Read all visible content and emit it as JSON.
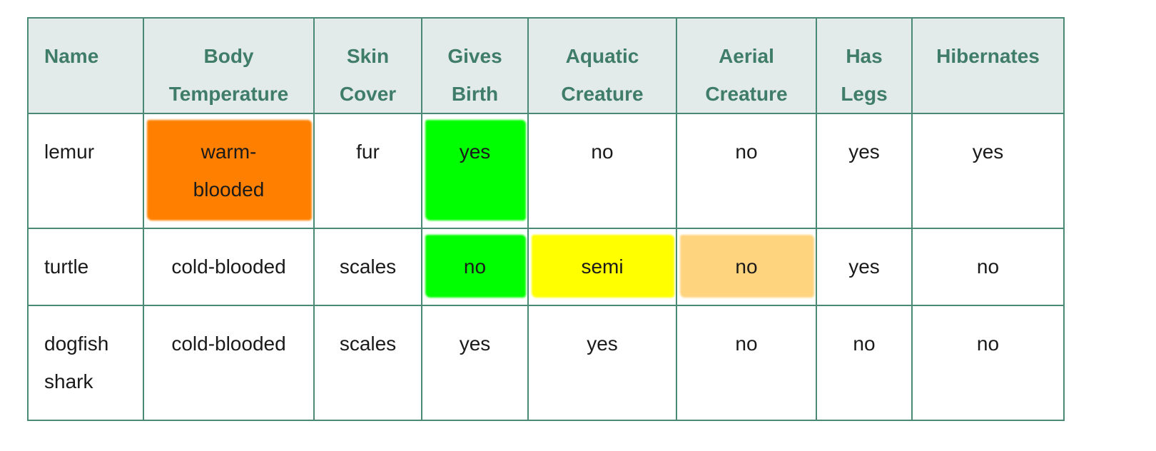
{
  "table": {
    "headers": {
      "name": "Name",
      "body_temp_1": "Body",
      "body_temp_2": "Temperature",
      "skin_1": "Skin",
      "skin_2": "Cover",
      "birth_1": "Gives",
      "birth_2": "Birth",
      "aquatic_1": "Aquatic",
      "aquatic_2": "Creature",
      "aerial_1": "Aerial",
      "aerial_2": "Creature",
      "legs_1": "Has",
      "legs_2": "Legs",
      "hibernates": "Hibernates"
    },
    "rows": [
      {
        "name": "lemur",
        "body_temp_1": "warm-",
        "body_temp_2": "blooded",
        "skin": "fur",
        "birth": "yes",
        "aquatic": "no",
        "aerial": "no",
        "legs": "yes",
        "hibernates": "yes"
      },
      {
        "name": "turtle",
        "body_temp": "cold-blooded",
        "skin": "scales",
        "birth": "no",
        "aquatic": "semi",
        "aerial": "no",
        "legs": "yes",
        "hibernates": "no"
      },
      {
        "name_1": "dogfish",
        "name_2": "shark",
        "body_temp": "cold-blooded",
        "skin": "scales",
        "birth": "yes",
        "aquatic": "yes",
        "aerial": "no",
        "legs": "no",
        "hibernates": "no"
      }
    ]
  },
  "highlight_colors": {
    "orange": "#ff8000",
    "green": "#00ff00",
    "yellow": "#ffff00",
    "peach": "#ffd47f"
  },
  "theme": {
    "border": "#4a8a74",
    "header_bg": "#e3ebea",
    "header_text": "#3f7d68"
  }
}
